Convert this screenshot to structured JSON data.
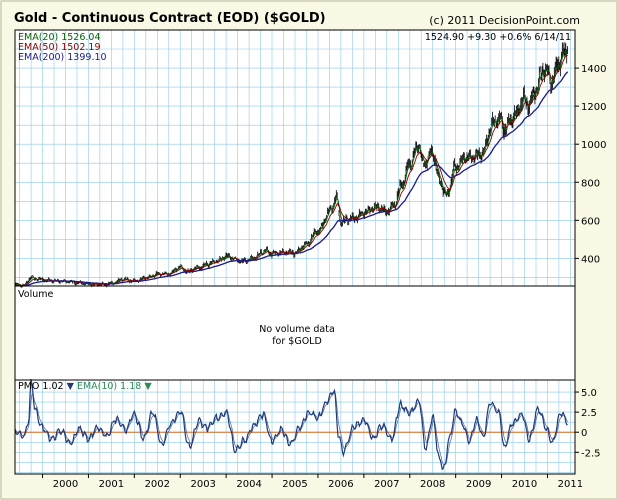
{
  "title": "Gold - Continuous Contract (EOD) ($GOLD)",
  "credit": "(c) 2011 DecisionPoint.com",
  "colors": {
    "background": "#f9f9e5",
    "panel": "#ffffff",
    "grid": "#8ecae6",
    "price": "#000000",
    "ema20": "#006400",
    "ema50": "#8b0000",
    "ema200": "#1a1a8c",
    "pmo": "#1f3a78",
    "pmo_signal": "#2e8b57",
    "zero_line": "#d2691e"
  },
  "chart_data": [
    {
      "type": "line",
      "panel": "price",
      "legend": [
        {
          "label": "EMA(20)",
          "value": "1526.04",
          "color": "#006400"
        },
        {
          "label": "EMA(50)",
          "value": "1502.19",
          "color": "#8b0000"
        },
        {
          "label": "EMA(200)",
          "value": "1399.10",
          "color": "#1a1a8c"
        }
      ],
      "last_quote": "1524.90 +9.30 +0.6% 6/14/11",
      "ylim": [
        255,
        1600
      ],
      "y_ticks": [
        "400",
        "600",
        "800",
        "1000",
        "1200",
        "1400"
      ],
      "xlim": [
        1999.4,
        2011.6
      ],
      "x_ticks": [
        "2000",
        "2001",
        "2002",
        "2003",
        "2004",
        "2005",
        "2006",
        "2007",
        "2008",
        "2009",
        "2010",
        "2011"
      ],
      "grid": true,
      "price_series": [
        [
          1999.4,
          262
        ],
        [
          1999.6,
          258
        ],
        [
          1999.75,
          300
        ],
        [
          1999.85,
          292
        ],
        [
          2000.0,
          288
        ],
        [
          2000.2,
          283
        ],
        [
          2000.5,
          280
        ],
        [
          2000.8,
          270
        ],
        [
          2001.0,
          265
        ],
        [
          2001.3,
          262
        ],
        [
          2001.5,
          268
        ],
        [
          2001.75,
          290
        ],
        [
          2002.0,
          282
        ],
        [
          2002.3,
          300
        ],
        [
          2002.5,
          318
        ],
        [
          2002.75,
          318
        ],
        [
          2003.0,
          355
        ],
        [
          2003.15,
          330
        ],
        [
          2003.4,
          352
        ],
        [
          2003.6,
          372
        ],
        [
          2003.85,
          390
        ],
        [
          2004.0,
          415
        ],
        [
          2004.15,
          400
        ],
        [
          2004.35,
          382
        ],
        [
          2004.6,
          400
        ],
        [
          2004.85,
          440
        ],
        [
          2005.0,
          425
        ],
        [
          2005.3,
          432
        ],
        [
          2005.5,
          430
        ],
        [
          2005.75,
          475
        ],
        [
          2006.0,
          545
        ],
        [
          2006.3,
          660
        ],
        [
          2006.4,
          720
        ],
        [
          2006.5,
          590
        ],
        [
          2006.75,
          610
        ],
        [
          2007.0,
          640
        ],
        [
          2007.3,
          670
        ],
        [
          2007.5,
          650
        ],
        [
          2007.65,
          680
        ],
        [
          2007.85,
          800
        ],
        [
          2008.0,
          900
        ],
        [
          2008.2,
          990
        ],
        [
          2008.3,
          890
        ],
        [
          2008.5,
          960
        ],
        [
          2008.65,
          810
        ],
        [
          2008.8,
          730
        ],
        [
          2009.0,
          880
        ],
        [
          2009.2,
          930
        ],
        [
          2009.45,
          940
        ],
        [
          2009.6,
          960
        ],
        [
          2009.8,
          1100
        ],
        [
          2009.95,
          1140
        ],
        [
          2010.05,
          1080
        ],
        [
          2010.3,
          1150
        ],
        [
          2010.5,
          1240
        ],
        [
          2010.6,
          1200
        ],
        [
          2010.75,
          1290
        ],
        [
          2010.92,
          1400
        ],
        [
          2011.0,
          1380
        ],
        [
          2011.1,
          1320
        ],
        [
          2011.25,
          1430
        ],
        [
          2011.35,
          1480
        ],
        [
          2011.45,
          1525
        ]
      ]
    },
    {
      "type": "line",
      "panel": "volume",
      "title": "Volume",
      "note": "No volume data\nfor $GOLD"
    },
    {
      "type": "line",
      "panel": "indicator",
      "name": "PMO",
      "pmo_value": "1.02",
      "pmo_arrow": "▼",
      "signal_label": "EMA(10)",
      "signal_value": "1.18",
      "signal_arrow": "▼",
      "ylim": [
        -5.2,
        6.5
      ],
      "y_ticks": [
        "5.0",
        "2.5",
        "0",
        "-2.5"
      ],
      "pmo_series": [
        [
          1999.4,
          0
        ],
        [
          1999.6,
          -0.5
        ],
        [
          1999.7,
          1.5
        ],
        [
          1999.75,
          6.3
        ],
        [
          1999.85,
          2.5
        ],
        [
          2000.0,
          0.5
        ],
        [
          2000.2,
          -0.8
        ],
        [
          2000.4,
          0.2
        ],
        [
          2000.6,
          -1.4
        ],
        [
          2000.8,
          0.4
        ],
        [
          2001.0,
          -0.8
        ],
        [
          2001.2,
          0.6
        ],
        [
          2001.4,
          -0.5
        ],
        [
          2001.6,
          1.6
        ],
        [
          2001.8,
          0.3
        ],
        [
          2002.0,
          2.2
        ],
        [
          2002.2,
          -0.8
        ],
        [
          2002.4,
          2.5
        ],
        [
          2002.6,
          -1.5
        ],
        [
          2002.8,
          1.2
        ],
        [
          2003.0,
          2.6
        ],
        [
          2003.2,
          -1.8
        ],
        [
          2003.4,
          1.4
        ],
        [
          2003.6,
          0.5
        ],
        [
          2003.8,
          1.8
        ],
        [
          2004.0,
          2.5
        ],
        [
          2004.2,
          -2.2
        ],
        [
          2004.4,
          -1.0
        ],
        [
          2004.6,
          0.8
        ],
        [
          2004.8,
          2.2
        ],
        [
          2005.0,
          -1.2
        ],
        [
          2005.2,
          0.4
        ],
        [
          2005.4,
          -1.5
        ],
        [
          2005.6,
          0.6
        ],
        [
          2005.8,
          2.4
        ],
        [
          2006.0,
          1.8
        ],
        [
          2006.2,
          3.8
        ],
        [
          2006.35,
          5.3
        ],
        [
          2006.45,
          -0.5
        ],
        [
          2006.55,
          -2.4
        ],
        [
          2006.8,
          0.8
        ],
        [
          2007.0,
          1.5
        ],
        [
          2007.2,
          -0.8
        ],
        [
          2007.4,
          0.8
        ],
        [
          2007.6,
          -0.9
        ],
        [
          2007.8,
          3.4
        ],
        [
          2008.0,
          2.4
        ],
        [
          2008.2,
          3.8
        ],
        [
          2008.35,
          -2.0
        ],
        [
          2008.5,
          1.8
        ],
        [
          2008.65,
          -3.5
        ],
        [
          2008.75,
          -4.6
        ],
        [
          2008.85,
          -1.0
        ],
        [
          2009.0,
          2.6
        ],
        [
          2009.15,
          1.0
        ],
        [
          2009.3,
          -1.2
        ],
        [
          2009.45,
          1.5
        ],
        [
          2009.6,
          -0.5
        ],
        [
          2009.75,
          3.6
        ],
        [
          2009.95,
          2.4
        ],
        [
          2010.05,
          -1.8
        ],
        [
          2010.25,
          1.2
        ],
        [
          2010.45,
          2.2
        ],
        [
          2010.6,
          -0.9
        ],
        [
          2010.8,
          2.8
        ],
        [
          2011.0,
          0.2
        ],
        [
          2011.1,
          -1.3
        ],
        [
          2011.3,
          2.4
        ],
        [
          2011.45,
          1.0
        ]
      ]
    }
  ]
}
